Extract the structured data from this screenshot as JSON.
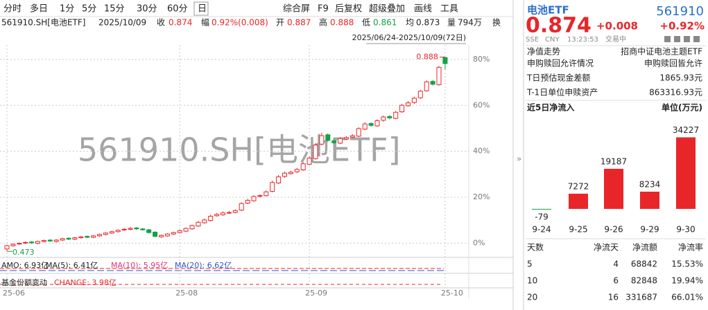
{
  "toolbar": [
    "分时",
    "多日",
    "1分",
    "5分",
    "15分",
    "30分",
    "60分",
    "日",
    "综合屏",
    "F9",
    "后复权",
    "超级叠加",
    "画线",
    "工具"
  ],
  "info": {
    "code": "561910.SH[电池ETF]",
    "date": "2025/10/09",
    "close_label": "收",
    "close": "0.874",
    "change_label": "幅",
    "change": "0.92%(0.008)",
    "open_label": "开",
    "open": "0.887",
    "high_label": "高",
    "high": "0.888",
    "low_label": "低",
    "low": "0.861",
    "avg_label": "均",
    "avg": "0.873",
    "volume_label": "量",
    "volume": "794万",
    "turnover_label": "换"
  },
  "range": "2025/06/24-2025/10/09(72日)",
  "watermark": "561910.SH[电池ETF]",
  "indicators": {
    "amo": "AMO: 6.93亿",
    "ma5": "MA(5): 6.41亿",
    "ma10": "MA(10): 5.95亿",
    "ma20": "MA(20): 6.62亿",
    "fund": "基金份额变动",
    "fund_change": "CHANGE: 3.98亿"
  },
  "chart_data": [
    {
      "type": "candlestick",
      "up_color": "#e8262a",
      "down_color": "#14a046",
      "grid": true,
      "categories": [
        "25-06",
        null,
        null,
        null,
        null,
        null,
        null,
        null,
        null,
        null,
        null,
        null,
        null,
        null,
        null,
        null,
        null,
        null,
        null,
        null,
        null,
        null,
        null,
        null,
        null,
        null,
        null,
        null,
        "25-08",
        null,
        null,
        null,
        null,
        null,
        null,
        null,
        null,
        null,
        null,
        null,
        null,
        null,
        null,
        null,
        null,
        null,
        null,
        null,
        null,
        "25-09",
        null,
        null,
        null,
        null,
        null,
        null,
        null,
        null,
        null,
        null,
        null,
        null,
        null,
        null,
        null,
        null,
        null,
        null,
        null,
        null,
        null,
        "25-10"
      ],
      "open": [
        0.478,
        0.485,
        0.489,
        0.491,
        0.493,
        0.49,
        0.494,
        0.497,
        0.494,
        0.497,
        0.501,
        0.499,
        0.502,
        0.505,
        0.503,
        0.506,
        0.509,
        0.512,
        0.515,
        0.519,
        0.52,
        0.523,
        0.521,
        0.519,
        0.514,
        0.504,
        0.506,
        0.51,
        0.513,
        0.516,
        0.521,
        0.527,
        0.534,
        0.539,
        0.549,
        0.551,
        0.556,
        0.556,
        0.561,
        0.576,
        0.581,
        0.591,
        0.592,
        0.601,
        0.619,
        0.633,
        0.639,
        0.643,
        0.647,
        0.659,
        0.671,
        0.702,
        0.722,
        0.709,
        0.704,
        0.713,
        0.717,
        0.719,
        0.734,
        0.746,
        0.741,
        0.753,
        0.761,
        0.757,
        0.771,
        0.784,
        0.791,
        0.801,
        0.816,
        0.836,
        0.829,
        0.887
      ],
      "high": [
        0.487,
        0.49,
        0.492,
        0.494,
        0.495,
        0.496,
        0.498,
        0.499,
        0.499,
        0.502,
        0.503,
        0.504,
        0.506,
        0.507,
        0.508,
        0.511,
        0.514,
        0.517,
        0.52,
        0.523,
        0.525,
        0.525,
        0.523,
        0.521,
        0.516,
        0.509,
        0.512,
        0.515,
        0.519,
        0.524,
        0.53,
        0.538,
        0.543,
        0.551,
        0.555,
        0.558,
        0.559,
        0.563,
        0.578,
        0.585,
        0.593,
        0.595,
        0.603,
        0.624,
        0.636,
        0.643,
        0.645,
        0.651,
        0.663,
        0.676,
        0.704,
        0.726,
        0.725,
        0.712,
        0.717,
        0.719,
        0.723,
        0.738,
        0.749,
        0.749,
        0.755,
        0.763,
        0.764,
        0.773,
        0.788,
        0.794,
        0.803,
        0.818,
        0.838,
        0.839,
        0.869,
        0.888
      ],
      "low": [
        0.473,
        0.483,
        0.487,
        0.489,
        0.489,
        0.488,
        0.492,
        0.493,
        0.492,
        0.495,
        0.497,
        0.497,
        0.5,
        0.501,
        0.501,
        0.504,
        0.507,
        0.51,
        0.513,
        0.517,
        0.518,
        0.519,
        0.517,
        0.511,
        0.503,
        0.502,
        0.504,
        0.508,
        0.511,
        0.514,
        0.519,
        0.525,
        0.532,
        0.537,
        0.547,
        0.549,
        0.553,
        0.554,
        0.559,
        0.574,
        0.579,
        0.588,
        0.59,
        0.599,
        0.617,
        0.63,
        0.637,
        0.64,
        0.645,
        0.657,
        0.669,
        0.699,
        0.707,
        0.702,
        0.702,
        0.711,
        0.715,
        0.717,
        0.732,
        0.739,
        0.739,
        0.75,
        0.755,
        0.755,
        0.769,
        0.782,
        0.788,
        0.799,
        0.814,
        0.827,
        0.827,
        0.861
      ],
      "close": [
        0.485,
        0.488,
        0.49,
        0.492,
        0.491,
        0.494,
        0.496,
        0.495,
        0.497,
        0.5,
        0.499,
        0.502,
        0.504,
        0.503,
        0.506,
        0.509,
        0.512,
        0.515,
        0.518,
        0.52,
        0.522,
        0.521,
        0.519,
        0.513,
        0.505,
        0.507,
        0.51,
        0.513,
        0.517,
        0.522,
        0.528,
        0.535,
        0.54,
        0.548,
        0.552,
        0.555,
        0.556,
        0.56,
        0.575,
        0.582,
        0.59,
        0.592,
        0.6,
        0.62,
        0.632,
        0.64,
        0.642,
        0.648,
        0.66,
        0.672,
        0.7,
        0.72,
        0.71,
        0.705,
        0.714,
        0.716,
        0.72,
        0.735,
        0.745,
        0.742,
        0.752,
        0.76,
        0.758,
        0.77,
        0.785,
        0.79,
        0.8,
        0.815,
        0.835,
        0.83,
        0.866,
        0.874
      ],
      "ylim": [
        0.46,
        0.899
      ],
      "yticks": [
        {
          "value": 0.4905,
          "label": "0%"
        },
        {
          "value": 0.5886,
          "label": "20%"
        },
        {
          "value": 0.6867,
          "label": "40%"
        },
        {
          "value": 0.7848,
          "label": "60%"
        },
        {
          "value": 0.8829,
          "label": "80%"
        }
      ]
    },
    {
      "type": "bar",
      "title": "近5日净流入",
      "subtitle": "单位(万元)",
      "color": "#e8262a",
      "negative_color": "#14a046",
      "categories": [
        "9-24",
        "9-25",
        "9-26",
        "9-29",
        "9-30"
      ],
      "values": [
        -79,
        7272,
        19187,
        8234,
        34227
      ],
      "ylim": [
        -6000,
        42000
      ]
    }
  ],
  "panel": {
    "name": "电池ETF",
    "code": "561910",
    "price": "0.874",
    "change": "+0.008",
    "change_pct": "+0.92%",
    "exchange": "SSE",
    "currency": "CNY",
    "time": "13:23:53",
    "status": "交易中",
    "rows": [
      [
        "净值走势",
        "招商中证电池主题ETF"
      ],
      [
        "申购赎回允许情况",
        "申购赎回皆允许"
      ],
      [
        "T日预估现金差额",
        "1865.93元"
      ],
      [
        "T-1日单位申赎资产",
        "863316.93元"
      ]
    ],
    "table": {
      "header": [
        "天数",
        "净流天",
        "净流额",
        "净流率"
      ],
      "rows": [
        [
          "5",
          "4",
          "68842",
          "15.53%"
        ],
        [
          "10",
          "6",
          "82848",
          "19.94%"
        ],
        [
          "20",
          "16",
          "331687",
          "66.01%"
        ]
      ]
    }
  }
}
